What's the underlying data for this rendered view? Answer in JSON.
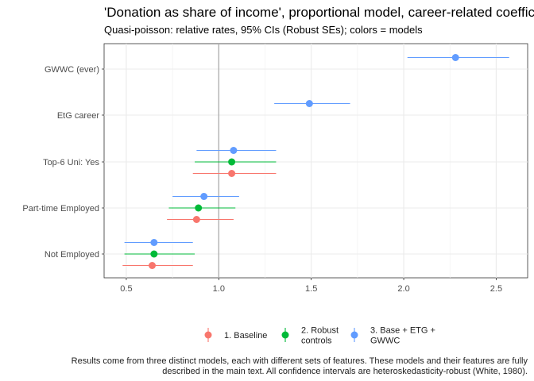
{
  "chart_data": {
    "type": "forest",
    "title": "'Donation as share of income', proportional model, career-related coefficients",
    "subtitle": "Quasi-poisson: relative rates, 95% CIs (Robust SEs); colors = models",
    "xlim": [
      0.38,
      2.67
    ],
    "xticks": [
      0.5,
      1.0,
      1.5,
      2.0,
      2.5
    ],
    "xtick_labels": [
      "0.5",
      "1.0",
      "1.5",
      "2.0",
      "2.5"
    ],
    "reference_line": 1.0,
    "categories": [
      "GWWC (ever)",
      "EtG career",
      "Top-6 Uni: Yes",
      "Part-time Employed",
      "Not Employed"
    ],
    "series": [
      {
        "name": "1. Baseline",
        "label_lines": [
          "1. Baseline"
        ],
        "color": "#F8766D",
        "points": [
          {
            "category": "Top-6 Uni: Yes",
            "estimate": 1.07,
            "ci": [
              0.86,
              1.31
            ]
          },
          {
            "category": "Part-time Employed",
            "estimate": 0.88,
            "ci": [
              0.72,
              1.08
            ]
          },
          {
            "category": "Not Employed",
            "estimate": 0.64,
            "ci": [
              0.48,
              0.86
            ]
          }
        ]
      },
      {
        "name": "2. Robust controls",
        "label_lines": [
          "2. Robust",
          "controls"
        ],
        "color": "#00BA38",
        "points": [
          {
            "category": "Top-6 Uni: Yes",
            "estimate": 1.07,
            "ci": [
              0.87,
              1.31
            ]
          },
          {
            "category": "Part-time Employed",
            "estimate": 0.89,
            "ci": [
              0.73,
              1.09
            ]
          },
          {
            "category": "Not Employed",
            "estimate": 0.65,
            "ci": [
              0.49,
              0.87
            ]
          }
        ]
      },
      {
        "name": "3. Base + ETG + GWWC",
        "label_lines": [
          "3. Base + ETG +",
          "GWWC"
        ],
        "color": "#619CFF",
        "points": [
          {
            "category": "GWWC (ever)",
            "estimate": 2.28,
            "ci": [
              2.02,
              2.57
            ]
          },
          {
            "category": "EtG career",
            "estimate": 1.49,
            "ci": [
              1.3,
              1.71
            ]
          },
          {
            "category": "Top-6 Uni: Yes",
            "estimate": 1.08,
            "ci": [
              0.88,
              1.31
            ]
          },
          {
            "category": "Part-time Employed",
            "estimate": 0.92,
            "ci": [
              0.75,
              1.11
            ]
          },
          {
            "category": "Not Employed",
            "estimate": 0.65,
            "ci": [
              0.49,
              0.86
            ]
          }
        ]
      }
    ],
    "caption_lines": [
      "Results come from three distinct models, each with different sets of features. These models and their features are fully",
      "described in the main text. All confidence intervals are heteroskedasticity-robust (White, 1980)."
    ]
  }
}
